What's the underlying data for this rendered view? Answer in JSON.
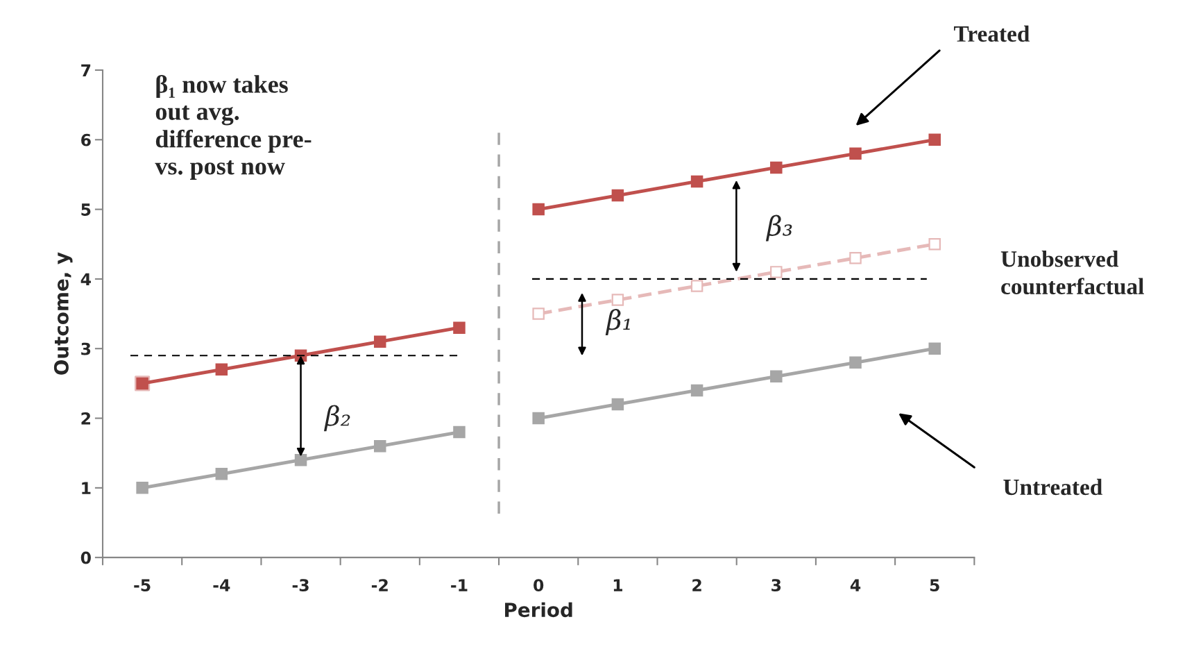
{
  "chart_data": {
    "type": "line",
    "xlabel": "Period",
    "ylabel": "Outcome, y",
    "xlim": [
      -5.5,
      5.5
    ],
    "xticks": [
      -5,
      -4,
      -3,
      -2,
      -1,
      0,
      1,
      2,
      3,
      4,
      5,
      {
        "value": -5.5,
        "label": null
      },
      {
        "value": -4.5,
        "label": null
      },
      {
        "value": -3.5,
        "label": null
      },
      {
        "value": -2.5,
        "label": null
      },
      {
        "value": -1.5,
        "label": null
      },
      {
        "value": -0.5,
        "label": null
      },
      {
        "value": 0.5,
        "label": null
      },
      {
        "value": 1.5,
        "label": null
      },
      {
        "value": 2.5,
        "label": null
      },
      {
        "value": 3.5,
        "label": null
      },
      {
        "value": 4.5,
        "label": null
      },
      {
        "value": 5.5,
        "label": null
      }
    ],
    "ylim": [
      0,
      7
    ],
    "yticks": [
      0,
      1,
      2,
      3,
      4,
      5,
      6,
      7
    ],
    "grid": false,
    "legend": false,
    "marker": "square",
    "series": [
      {
        "type": "scatter",
        "color": "#e6b9b8",
        "x": [
          -5
        ],
        "values": [
          2.5
        ]
      },
      {
        "color": "#c0504d",
        "x": [
          -5,
          -4,
          -3,
          -2,
          -1
        ],
        "values": [
          2.5,
          2.7,
          2.9,
          3.1,
          3.3
        ]
      },
      {
        "color": "#c0504d",
        "x": [
          0,
          1,
          2,
          3,
          4,
          5
        ],
        "values": [
          5.0,
          5.2,
          5.4,
          5.6,
          5.8,
          6.0
        ]
      },
      {
        "color": "#a6a6a6",
        "x": [
          -5,
          -4,
          -3,
          -2,
          -1
        ],
        "values": [
          1.0,
          1.2,
          1.4,
          1.6,
          1.8
        ]
      },
      {
        "color": "#a6a6a6",
        "x": [
          0,
          1,
          2,
          3,
          4,
          5
        ],
        "values": [
          2.0,
          2.2,
          2.4,
          2.6,
          2.8,
          3.0
        ]
      },
      {
        "color": "#e6b9b8",
        "line_style": "dashed",
        "x": [
          0,
          1,
          2,
          3,
          4,
          5
        ],
        "values": [
          3.5,
          3.7,
          3.9,
          4.1,
          4.3,
          4.5
        ]
      },
      {
        "color": "#000000",
        "line_style": "dashed",
        "marker": "none",
        "x": [
          -5.15,
          -1
        ],
        "values": [
          2.9,
          2.9
        ]
      },
      {
        "color": "#000000",
        "line_style": "dashed",
        "marker": "none",
        "x": [
          -0.08,
          4.9
        ],
        "values": [
          4.0,
          4.0
        ]
      }
    ],
    "ref_lines": [
      {
        "axis": "x",
        "value": -0.5,
        "color": "#a6a6a6",
        "line_style": "dashed"
      }
    ],
    "annotations": [
      "β₁ now takes\nout avg.\ndifference pre-\nvs. post now",
      "Treated",
      "Untreated",
      "Unobserved\ncounterfactual",
      {
        "text": "β₂",
        "x": -3,
        "y": 2.9
      },
      "β₃",
      "β₁"
    ]
  }
}
